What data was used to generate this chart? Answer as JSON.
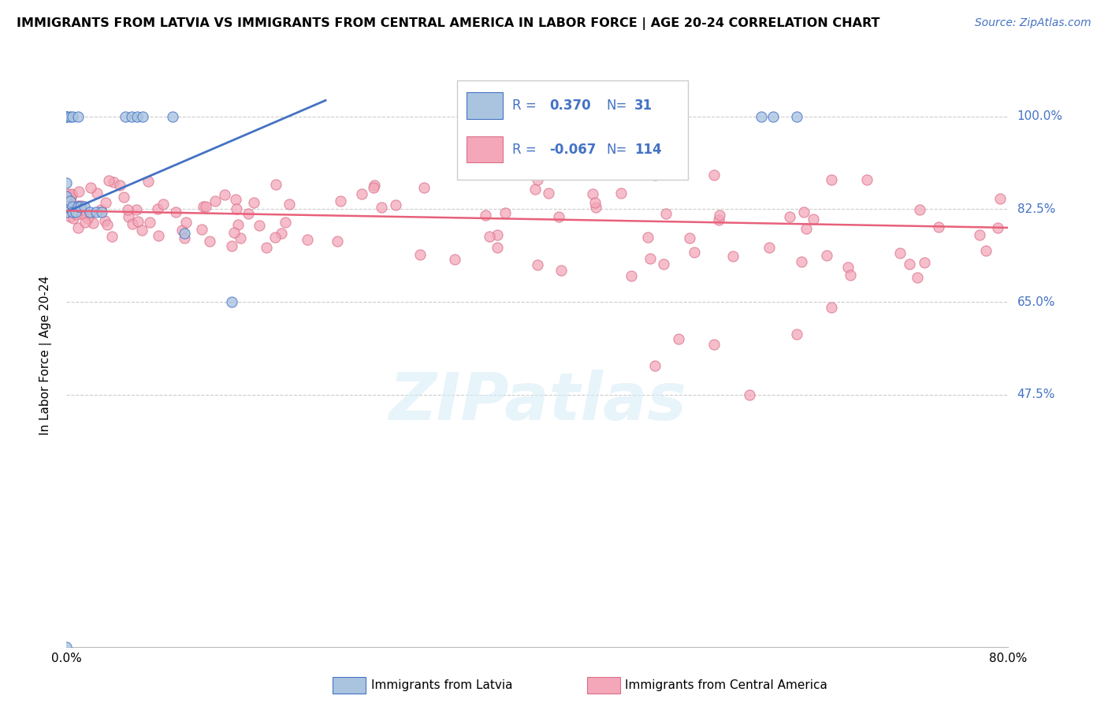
{
  "title": "IMMIGRANTS FROM LATVIA VS IMMIGRANTS FROM CENTRAL AMERICA IN LABOR FORCE | AGE 20-24 CORRELATION CHART",
  "source": "Source: ZipAtlas.com",
  "ylabel_left": "In Labor Force | Age 20-24",
  "ytick_labels_right": [
    "100.0%",
    "82.5%",
    "65.0%",
    "47.5%"
  ],
  "ytick_values": [
    0.0,
    0.475,
    0.65,
    0.825,
    1.0
  ],
  "xlim": [
    0.0,
    0.8
  ],
  "ylim": [
    0.0,
    1.1
  ],
  "legend_R_latvia": "0.370",
  "legend_N_latvia": "31",
  "legend_R_central": "-0.067",
  "legend_N_central": "114",
  "color_latvia": "#aac4e0",
  "color_central": "#f4a7b9",
  "line_color_latvia": "#4472c4",
  "line_color_central": "#e8607a",
  "watermark": "ZIPatlas",
  "background_color": "#ffffff",
  "grid_color": "#cccccc",
  "latvia_line_x0": 0.0,
  "latvia_line_y0": 0.82,
  "latvia_line_x1": 0.22,
  "latvia_line_y1": 1.03,
  "central_line_x0": 0.0,
  "central_line_y0": 0.822,
  "central_line_x1": 0.8,
  "central_line_y1": 0.79
}
